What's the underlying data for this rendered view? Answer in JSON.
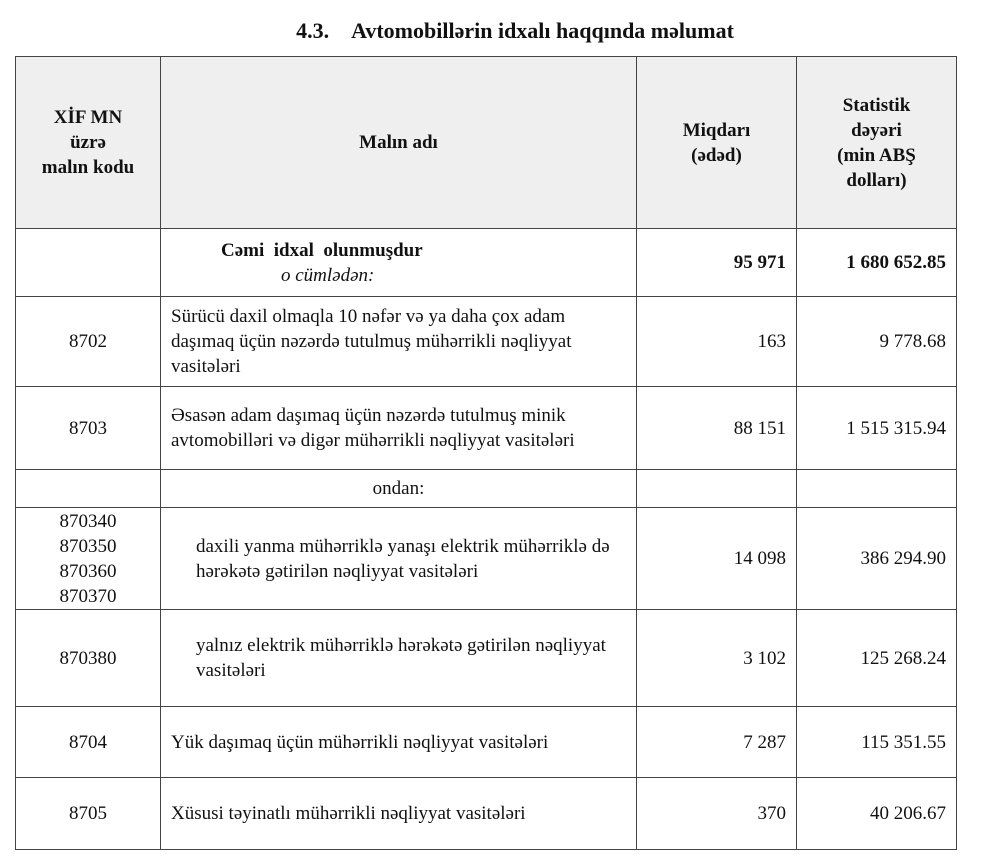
{
  "title": {
    "number": "4.3.",
    "text": "Avtomobillərin idxalı haqqında məlumat"
  },
  "headers": {
    "code": [
      "XİF MN",
      "üzrə",
      "malın kodu"
    ],
    "name": "Malın adı",
    "quantity": [
      "Miqdarı",
      "(ədəd)"
    ],
    "value": [
      "Statistik",
      "dəyəri",
      "(min ABŞ",
      "dolları)"
    ]
  },
  "total": {
    "label": "Cəmi  idxal  olunmuşdur",
    "sublabel": "o cümlədən:",
    "quantity": "95 971",
    "value": "1 680 652.85"
  },
  "rows": [
    {
      "code": "8702",
      "name": "Sürücü daxil olmaqla 10 nəfər və ya daha çox adam daşımaq üçün nəzərdə tutulmuş mühərrikli nəqliyyat vasitələri",
      "quantity": "163",
      "value": "9 778.68"
    },
    {
      "code": "8703",
      "name": "Əsasən adam daşımaq üçün nəzərdə tutulmuş minik avtomobilləri və digər mühərrikli nəqliyyat vasitələri",
      "quantity": "88 151",
      "value": "1 515 315.94"
    }
  ],
  "ondan": "ondan:",
  "subrows": [
    {
      "codes": [
        "870340",
        "870350",
        "870360",
        "870370"
      ],
      "name": "daxili yanma mühərriklə yanaşı elektrik mühərriklə də hərəkətə gətirilən nəqliyyat vasitələri",
      "quantity": "14 098",
      "value": "386 294.90"
    },
    {
      "codes": [
        "870380"
      ],
      "name": "yalnız elektrik mühərriklə hərəkətə gətirilən nəqliyyat vasitələri",
      "quantity": "3 102",
      "value": "125 268.24"
    }
  ],
  "rows2": [
    {
      "code": "8704",
      "name": "Yük daşımaq üçün mühərrikli nəqliyyat vasitələri",
      "quantity": "7 287",
      "value": "115 351.55"
    },
    {
      "code": "8705",
      "name": "Xüsusi təyinatlı mühərrikli nəqliyyat vasitələri",
      "quantity": "370",
      "value": "40 206.67"
    }
  ]
}
